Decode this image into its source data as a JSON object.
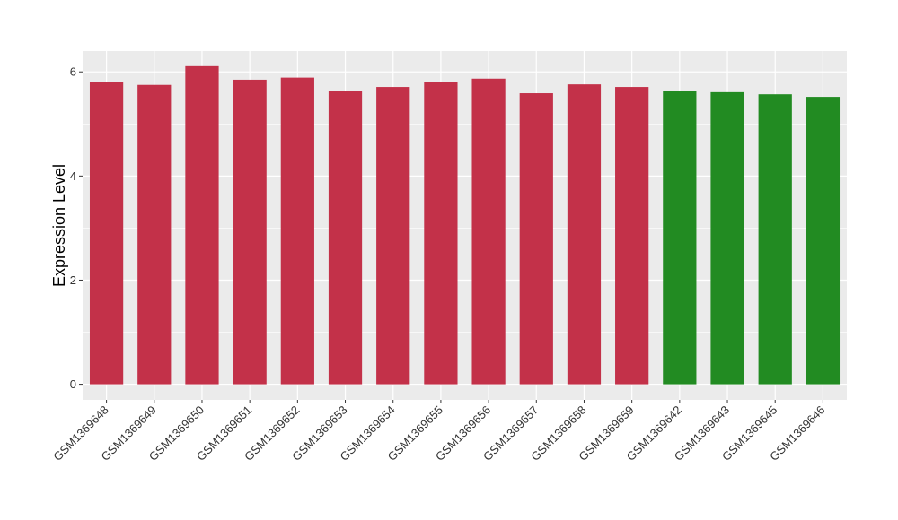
{
  "chart_data": {
    "type": "bar",
    "title": "",
    "xlabel": "",
    "ylabel": "Expression Level",
    "ylim": [
      -0.3,
      6.4
    ],
    "yticks": [
      0,
      2,
      4,
      6
    ],
    "ytick_labels": [
      "0",
      "2",
      "4",
      "6"
    ],
    "grid": true,
    "legend": "none",
    "panel_background": "#EBEBEB",
    "grid_color": "#FFFFFF",
    "categories": [
      "GSM1369648",
      "GSM1369649",
      "GSM1369650",
      "GSM1369651",
      "GSM1369652",
      "GSM1369653",
      "GSM1369654",
      "GSM1369655",
      "GSM1369656",
      "GSM1369657",
      "GSM1369658",
      "GSM1369659",
      "GSM1369642",
      "GSM1369643",
      "GSM1369645",
      "GSM1369646"
    ],
    "values": [
      5.81,
      5.75,
      6.11,
      5.85,
      5.89,
      5.64,
      5.71,
      5.8,
      5.87,
      5.59,
      5.76,
      5.71,
      5.64,
      5.61,
      5.57,
      5.52
    ],
    "bar_colors": [
      "#C33149",
      "#C33149",
      "#C33149",
      "#C33149",
      "#C33149",
      "#C33149",
      "#C33149",
      "#C33149",
      "#C33149",
      "#C33149",
      "#C33149",
      "#C33149",
      "#228B22",
      "#228B22",
      "#228B22",
      "#228B22"
    ]
  }
}
